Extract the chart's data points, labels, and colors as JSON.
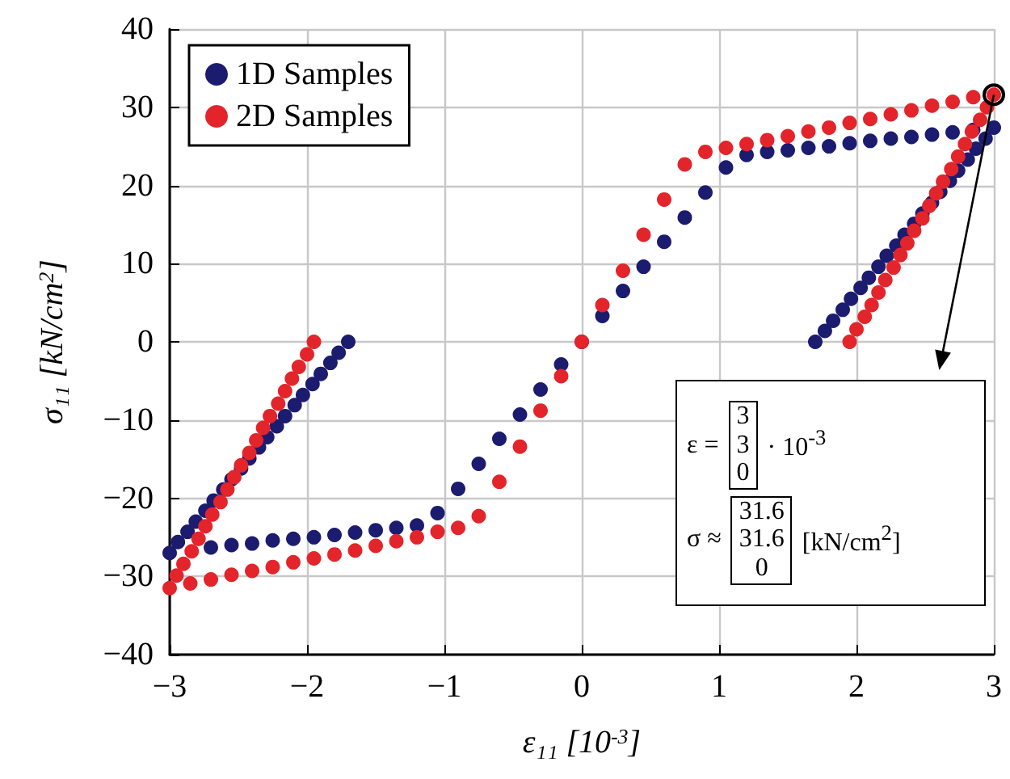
{
  "chart_data": {
    "type": "scatter",
    "xlabel": "ε₁₁ [10$^{-3}$]",
    "ylabel": "σ₁₁ [kN/cm$^{2}$]",
    "xlim": [
      -3,
      3
    ],
    "ylim": [
      -40,
      40
    ],
    "xticks": [
      -3,
      -2,
      -1,
      0,
      1,
      2,
      3
    ],
    "yticks": [
      -40,
      -30,
      -20,
      -10,
      0,
      10,
      20,
      30,
      40
    ],
    "grid": true,
    "legend": "top left",
    "marker": "circle",
    "series": [
      {
        "name": "1D Samples",
        "color": "#1b1b6f",
        "x": [
          -3,
          -2.94,
          -2.87,
          -2.81,
          -2.74,
          -2.68,
          -2.61,
          -2.55,
          -2.48,
          -2.42,
          -2.35,
          -2.29,
          -2.22,
          -2.16,
          -2.09,
          -2.03,
          -1.96,
          -1.9,
          -1.83,
          -1.77,
          -1.7,
          -2.7,
          -2.55,
          -2.4,
          -2.25,
          -2.1,
          -1.95,
          -1.8,
          -1.65,
          -1.5,
          -1.35,
          -1.2,
          -1.05,
          -0.9,
          -0.75,
          -0.6,
          -0.45,
          -0.3,
          -0.15,
          0,
          0.15,
          0.3,
          0.45,
          0.6,
          0.75,
          0.9,
          1.05,
          1.2,
          1.35,
          1.5,
          1.65,
          1.8,
          1.95,
          2.1,
          2.25,
          2.4,
          2.55,
          2.7,
          2.85,
          3,
          2.94,
          2.87,
          2.81,
          2.74,
          2.68,
          2.61,
          2.55,
          2.48,
          2.42,
          2.35,
          2.29,
          2.22,
          2.16,
          2.09,
          2.03,
          1.96,
          1.9,
          1.83,
          1.77,
          1.7
        ],
        "values": [
          -27,
          -25.6,
          -24.3,
          -23,
          -21.6,
          -20.3,
          -18.9,
          -17.6,
          -16.2,
          -14.9,
          -13.5,
          -12.2,
          -10.8,
          -9.5,
          -8.1,
          -6.8,
          -5.4,
          -4.1,
          -2.7,
          -1.4,
          0,
          -26.3,
          -26,
          -25.8,
          -25.4,
          -25.2,
          -25,
          -24.7,
          -24.4,
          -24.1,
          -23.8,
          -23.5,
          -21.9,
          -18.8,
          -15.6,
          -12.4,
          -9.3,
          -6.1,
          -2.9,
          0,
          3.3,
          6.5,
          9.6,
          12.8,
          15.9,
          19.1,
          22.3,
          23.9,
          24.3,
          24.5,
          24.8,
          25,
          25.4,
          25.7,
          26,
          26.2,
          26.5,
          26.8,
          27.1,
          27.4,
          26,
          24.7,
          23.3,
          21.9,
          20.6,
          19.2,
          17.8,
          16.4,
          15.1,
          13.7,
          12.3,
          11,
          9.6,
          8.2,
          6.9,
          5.5,
          4.1,
          2.7,
          1.4,
          0
        ]
      },
      {
        "name": "2D Samples",
        "color": "#e3242b",
        "x": [
          -3,
          -2.95,
          -2.9,
          -2.84,
          -2.79,
          -2.74,
          -2.69,
          -2.63,
          -2.58,
          -2.53,
          -2.48,
          -2.42,
          -2.37,
          -2.32,
          -2.27,
          -2.21,
          -2.16,
          -2.11,
          -2.06,
          -2,
          -1.95,
          -2.85,
          -2.7,
          -2.55,
          -2.4,
          -2.25,
          -2.1,
          -1.95,
          -1.8,
          -1.65,
          -1.5,
          -1.35,
          -1.2,
          -1.05,
          -0.9,
          -0.75,
          -0.6,
          -0.45,
          -0.3,
          -0.15,
          0,
          0.15,
          0.3,
          0.45,
          0.6,
          0.75,
          0.9,
          1.05,
          1.2,
          1.35,
          1.5,
          1.65,
          1.8,
          1.95,
          2.1,
          2.25,
          2.4,
          2.55,
          2.7,
          2.85,
          3,
          2.95,
          2.9,
          2.84,
          2.79,
          2.74,
          2.69,
          2.63,
          2.58,
          2.53,
          2.48,
          2.42,
          2.37,
          2.32,
          2.27,
          2.21,
          2.16,
          2.11,
          2.06,
          2,
          1.95
        ],
        "values": [
          -31.5,
          -29.9,
          -28.4,
          -26.8,
          -25.2,
          -23.6,
          -22.1,
          -20.5,
          -18.9,
          -17.3,
          -15.8,
          -14.2,
          -12.6,
          -11,
          -9.5,
          -7.9,
          -6.3,
          -4.7,
          -3.2,
          -1.6,
          0,
          -30.9,
          -30.4,
          -29.8,
          -29.3,
          -28.8,
          -28.2,
          -27.7,
          -27.2,
          -26.7,
          -26.1,
          -25.5,
          -25,
          -24.3,
          -23.8,
          -22.3,
          -17.9,
          -13.4,
          -8.8,
          -4.4,
          0,
          4.7,
          9.1,
          13.7,
          18.2,
          22.7,
          24.3,
          24.8,
          25.3,
          25.8,
          26.3,
          26.9,
          27.4,
          28,
          28.5,
          29.1,
          29.6,
          30.2,
          30.7,
          31.3,
          31.6,
          30,
          28.4,
          26.9,
          25.3,
          23.7,
          22.1,
          20.5,
          19,
          17.4,
          15.8,
          14.2,
          12.6,
          11.1,
          9.5,
          7.9,
          6.3,
          4.7,
          3.2,
          1.6,
          0
        ]
      }
    ],
    "annotations": [
      "ε =",
      "3",
      "3",
      "0",
      "· 10$^{-3}$",
      "σ ≈",
      "31.6",
      "31.6",
      "0",
      "[kN/cm$^{2}$]"
    ]
  }
}
